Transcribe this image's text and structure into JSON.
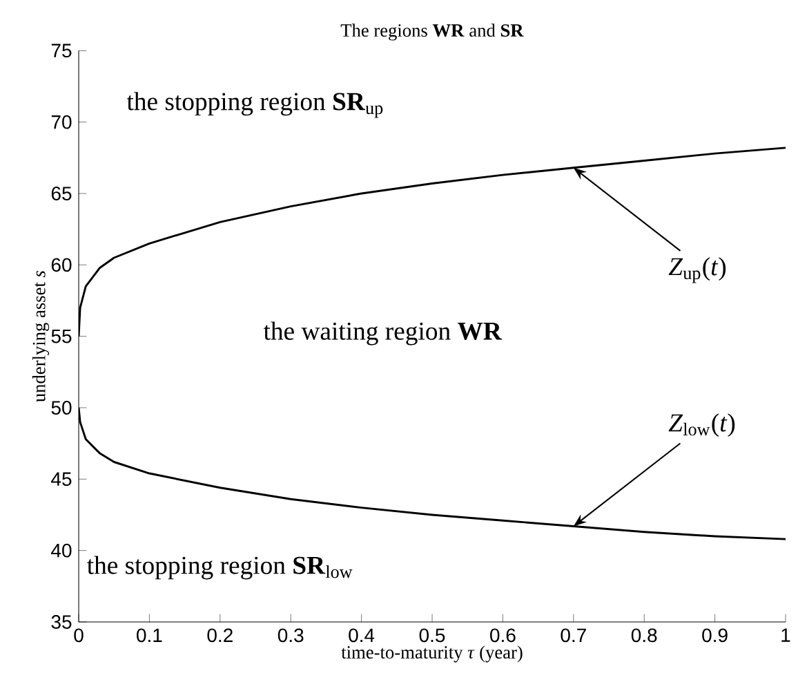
{
  "chart_data": {
    "type": "line",
    "title": "The regions **WR** and **SR**",
    "xlabel": "time-to-maturity *τ* (year)",
    "ylabel": "underlying asset *s*",
    "series": [
      {
        "color": "#000000",
        "x": [
          0,
          0.002,
          0.01,
          0.03,
          0.05,
          0.1,
          0.2,
          0.3,
          0.4,
          0.5,
          0.6,
          0.7,
          0.8,
          0.9,
          1
        ],
        "values": [
          55,
          57,
          58.5,
          59.8,
          60.5,
          61.5,
          63,
          64.1,
          65,
          65.7,
          66.3,
          66.8,
          67.3,
          67.8,
          68.2
        ]
      },
      {
        "color": "#000000",
        "x": [
          0,
          0.002,
          0.01,
          0.03,
          0.05,
          0.1,
          0.2,
          0.3,
          0.4,
          0.5,
          0.6,
          0.7,
          0.8,
          0.9,
          1
        ],
        "values": [
          50,
          49,
          47.8,
          46.8,
          46.2,
          45.4,
          44.4,
          43.6,
          43,
          42.5,
          42.1,
          41.7,
          41.3,
          41,
          40.8
        ]
      }
    ],
    "annotations": [
      "the stopping region **SR**$_{up}$",
      "the waiting region **WR**",
      "the stopping region **SR**$_{low}$",
      {
        "text": "*Z*$_{up}$(*t*)",
        "x": 0.7,
        "y": 66.8
      },
      {
        "text": "*Z*$_{low}$(*t*)",
        "x": 0.7,
        "y": 41.7
      }
    ],
    "xlim": [
      0,
      1
    ],
    "ylim": [
      35,
      75
    ],
    "xticks": [
      0,
      0.1,
      0.2,
      0.3,
      0.4,
      0.5,
      0.6,
      0.7,
      0.8,
      0.9,
      1
    ],
    "yticks": [
      35,
      40,
      45,
      50,
      55,
      60,
      65,
      70,
      75
    ],
    "grid": false,
    "marker": "none",
    "line_style": "solid"
  }
}
